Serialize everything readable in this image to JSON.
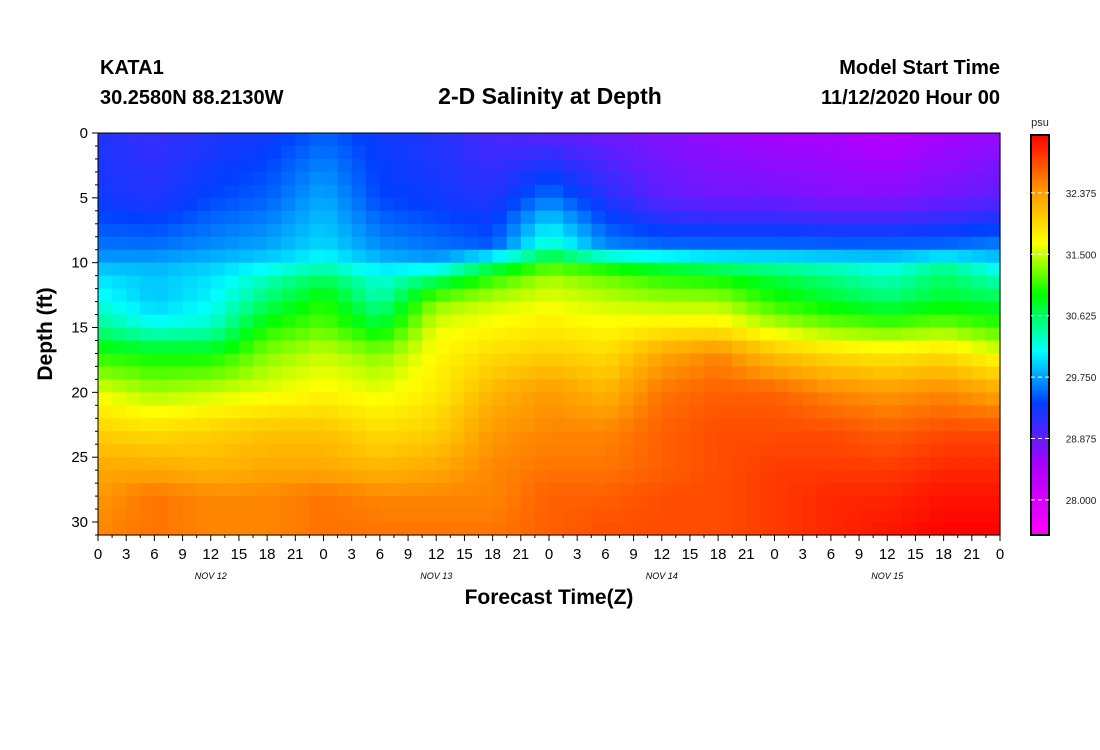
{
  "header": {
    "station": "KATA1",
    "coords": "30.2580N 88.2130W",
    "title": "2-D Salinity at Depth",
    "start_label": "Model Start Time",
    "start_value": "11/12/2020 Hour 00"
  },
  "chart_data": {
    "type": "heatmap",
    "title": "2-D Salinity at Depth",
    "xlabel": "Forecast Time(Z)",
    "ylabel": "Depth (ft)",
    "x_tick_labels": [
      "0",
      "3",
      "6",
      "9",
      "12",
      "15",
      "18",
      "21",
      "0",
      "3",
      "6",
      "9",
      "12",
      "15",
      "18",
      "21",
      "0",
      "3",
      "6",
      "9",
      "12",
      "15",
      "18",
      "21",
      "0",
      "3",
      "6",
      "9",
      "12",
      "15",
      "18",
      "21",
      "0"
    ],
    "x_hours": [
      0,
      3,
      6,
      9,
      12,
      15,
      18,
      21,
      24,
      27,
      30,
      33,
      36,
      39,
      42,
      45,
      48,
      51,
      54,
      57,
      60,
      63,
      66,
      69,
      72,
      75,
      78,
      81,
      84,
      87,
      90,
      93,
      96
    ],
    "xlim": [
      0,
      96
    ],
    "day_labels": [
      "NOV 12",
      "NOV 13",
      "NOV 14",
      "NOV 15"
    ],
    "y_ticks": [
      0,
      5,
      10,
      15,
      20,
      25,
      30
    ],
    "ylim": [
      0,
      31
    ],
    "y_reversed": true,
    "colorbar": {
      "unit": "psu",
      "range": [
        27.5,
        33.2
      ],
      "tick_labels": [
        "32.375",
        "31.500",
        "30.625",
        "29.750",
        "28.875",
        "28.000"
      ],
      "tick_values": [
        32.375,
        31.5,
        30.625,
        29.75,
        28.875,
        28.0
      ]
    },
    "time_hours": [
      0,
      6,
      12,
      18,
      24,
      30,
      36,
      42,
      48,
      54,
      60,
      66,
      72,
      78,
      84,
      90,
      96
    ],
    "depths": [
      0,
      5,
      9,
      10,
      11,
      13,
      15,
      17,
      20,
      23,
      26,
      28,
      31
    ],
    "salinity": [
      [
        29.2,
        29.1,
        29.2,
        29.3,
        29.5,
        29.3,
        29.2,
        29.0,
        28.9,
        28.8,
        28.7,
        28.6,
        28.5,
        28.5,
        28.4,
        28.5,
        28.6
      ],
      [
        29.3,
        29.2,
        29.4,
        29.5,
        29.8,
        29.4,
        29.3,
        29.2,
        29.6,
        29.2,
        28.9,
        28.8,
        28.8,
        28.7,
        28.7,
        28.8,
        28.9
      ],
      [
        29.6,
        29.6,
        29.7,
        29.8,
        30.0,
        29.7,
        29.6,
        29.5,
        30.4,
        29.7,
        29.6,
        29.6,
        29.6,
        29.6,
        29.6,
        29.6,
        29.7
      ],
      [
        29.8,
        29.8,
        29.9,
        30.0,
        30.2,
        29.9,
        29.8,
        30.5,
        31.0,
        30.8,
        30.6,
        30.4,
        30.3,
        30.2,
        30.1,
        30.4,
        30.0
      ],
      [
        30.0,
        29.9,
        30.0,
        30.3,
        30.6,
        30.2,
        30.5,
        31.0,
        31.4,
        31.2,
        31.0,
        30.9,
        30.7,
        30.5,
        30.3,
        30.6,
        30.3
      ],
      [
        30.2,
        29.9,
        30.1,
        30.6,
        31.0,
        30.4,
        31.3,
        31.5,
        31.6,
        31.5,
        31.4,
        31.4,
        31.0,
        30.8,
        30.6,
        30.8,
        30.7
      ],
      [
        30.5,
        30.2,
        30.3,
        31.0,
        31.2,
        30.8,
        31.6,
        31.7,
        31.8,
        31.7,
        31.8,
        31.8,
        31.5,
        31.3,
        31.2,
        31.3,
        31.1
      ],
      [
        31.0,
        30.9,
        30.9,
        31.3,
        31.5,
        31.3,
        31.7,
        31.9,
        32.0,
        31.9,
        32.3,
        32.5,
        32.1,
        31.9,
        31.8,
        31.9,
        31.6
      ],
      [
        31.6,
        31.4,
        31.5,
        31.6,
        31.7,
        31.6,
        31.8,
        32.2,
        32.4,
        32.2,
        32.6,
        32.7,
        32.7,
        32.5,
        32.4,
        32.5,
        32.3
      ],
      [
        32.0,
        31.9,
        32.0,
        32.1,
        32.1,
        31.9,
        32.0,
        32.4,
        32.5,
        32.5,
        32.7,
        32.8,
        32.8,
        32.8,
        32.7,
        32.8,
        32.8
      ],
      [
        32.3,
        32.3,
        32.2,
        32.3,
        32.3,
        32.2,
        32.3,
        32.5,
        32.6,
        32.6,
        32.7,
        32.8,
        32.9,
        32.9,
        32.9,
        33.0,
        33.0
      ],
      [
        32.4,
        32.6,
        32.5,
        32.5,
        32.6,
        32.5,
        32.5,
        32.5,
        32.7,
        32.7,
        32.8,
        32.8,
        32.9,
        33.0,
        33.0,
        33.1,
        33.1
      ],
      [
        32.5,
        32.6,
        32.5,
        32.5,
        32.6,
        32.6,
        32.6,
        32.6,
        32.7,
        32.8,
        32.8,
        32.8,
        32.9,
        33.0,
        33.1,
        33.2,
        33.2
      ]
    ]
  }
}
